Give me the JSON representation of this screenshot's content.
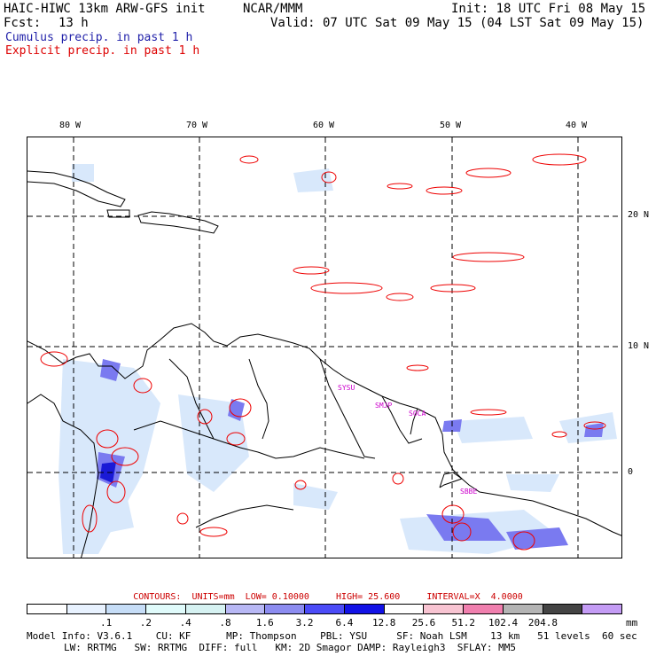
{
  "header": {
    "model": "HAIC-HIWC 13km ARW-GFS init",
    "org": "NCAR/MMM",
    "init": "Init: 18 UTC Fri 08 May 15",
    "fcst_label": "Fcst:",
    "fcst_value": "13 h",
    "valid": "Valid: 07 UTC Sat 09 May 15 (04 LST Sat 09 May 15)",
    "cumulus": "Cumulus precip. in past 1 h",
    "explicit": "Explicit precip. in past 1 h"
  },
  "colors": {
    "cumulus_text": "#2222aa",
    "explicit_text": "#dd0000",
    "contour": "#ee0000"
  },
  "map": {
    "lon_labels": [
      "80 W",
      "70 W",
      "60 W",
      "50 W",
      "40 W"
    ],
    "lat_labels": [
      "20 N",
      "10 N",
      "0"
    ],
    "stations": [
      "SYSU",
      "SMJP",
      "SOCA",
      "SBBE"
    ]
  },
  "contours_line": {
    "label": "CONTOURS:",
    "units": "UNITS=mm",
    "low": "LOW= 0.10000",
    "high": "HIGH= 25.600",
    "interval": "INTERVAL=X  4.0000"
  },
  "scale": {
    "colors": [
      "#ffffff",
      "#e8f2ff",
      "#c6ddf7",
      "#e0fbfb",
      "#d6f2f2",
      "#b8b8f5",
      "#8c8cf0",
      "#4b4bf7",
      "#1212e6",
      "#ffffff",
      "#f8c4d2",
      "#f07fae",
      "#b4b4b4",
      "#444444",
      "#c49cf5"
    ],
    "ticks": [
      ".1",
      ".2",
      ".4",
      ".8",
      "1.6",
      "3.2",
      "6.4",
      "12.8",
      "25.6",
      "51.2",
      "102.4",
      "204.8"
    ],
    "unit": "mm"
  },
  "model_info": {
    "line1": "Model Info: V3.6.1    CU: KF      MP: Thompson    PBL: YSU     SF: Noah LSM    13 km   51 levels  60 sec",
    "line2": "LW: RRTMG   SW: RRTMG  DIFF: full   KM: 2D Smagor DAMP: Rayleigh3  SFLAY: MM5"
  }
}
